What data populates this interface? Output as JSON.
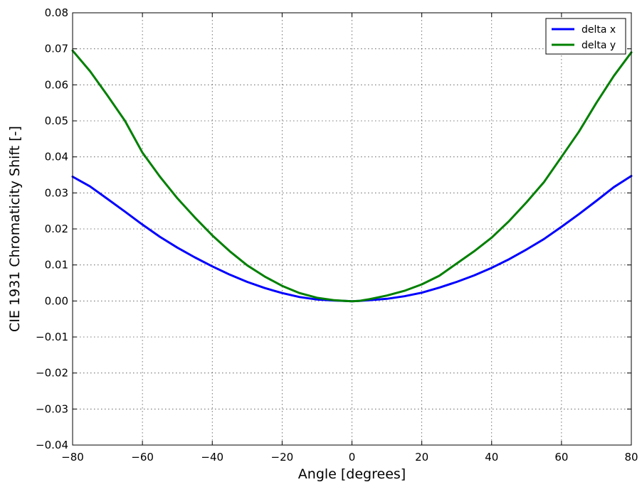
{
  "chart_data": {
    "type": "line",
    "xlabel": "Angle [degrees]",
    "ylabel": "CIE 1931 Chromaticity Shift  [-]",
    "xlim": [
      -80,
      80
    ],
    "ylim": [
      -0.04,
      0.08
    ],
    "xticks": [
      -80,
      -60,
      -40,
      -20,
      0,
      20,
      40,
      60,
      80
    ],
    "xtick_labels": [
      "−80",
      "−60",
      "−40",
      "−20",
      "0",
      "20",
      "40",
      "60",
      "80"
    ],
    "yticks": [
      -0.04,
      -0.03,
      -0.02,
      -0.01,
      0.0,
      0.01,
      0.02,
      0.03,
      0.04,
      0.05,
      0.06,
      0.07,
      0.08
    ],
    "ytick_labels": [
      "−0.04",
      "−0.03",
      "−0.02",
      "−0.01",
      "0.00",
      "0.01",
      "0.02",
      "0.03",
      "0.04",
      "0.05",
      "0.06",
      "0.07",
      "0.08"
    ],
    "grid": true,
    "legend": "top-right",
    "series": [
      {
        "name": "delta x",
        "color": "#0000ff",
        "x": [
          -80,
          -75,
          -70,
          -65,
          -60,
          -55,
          -50,
          -45,
          -40,
          -35,
          -30,
          -25,
          -20,
          -15,
          -10,
          -5,
          -2,
          0,
          2,
          5,
          10,
          15,
          20,
          25,
          30,
          35,
          40,
          45,
          50,
          55,
          60,
          65,
          70,
          75,
          80
        ],
        "y": [
          0.0345,
          0.0318,
          0.0283,
          0.0248,
          0.0212,
          0.0178,
          0.0148,
          0.0121,
          0.0096,
          0.0073,
          0.0053,
          0.0036,
          0.0022,
          0.0011,
          0.0004,
          0.0001,
          0.0,
          -0.0001,
          0.0,
          0.0002,
          0.0006,
          0.0013,
          0.0023,
          0.0037,
          0.0053,
          0.0071,
          0.0092,
          0.0116,
          0.0143,
          0.0172,
          0.0206,
          0.0241,
          0.0278,
          0.0316,
          0.0347
        ]
      },
      {
        "name": "delta y",
        "color": "#008000",
        "x": [
          -80,
          -75,
          -70,
          -65,
          -60,
          -55,
          -50,
          -45,
          -40,
          -35,
          -30,
          -25,
          -20,
          -15,
          -10,
          -5,
          -2,
          0,
          2,
          5,
          10,
          15,
          20,
          25,
          30,
          35,
          40,
          45,
          50,
          55,
          60,
          65,
          70,
          75,
          80
        ],
        "y": [
          0.0695,
          0.0638,
          0.057,
          0.05,
          0.0412,
          0.0345,
          0.0285,
          0.0232,
          0.0182,
          0.0138,
          0.0099,
          0.0068,
          0.0042,
          0.0022,
          0.0009,
          0.0002,
          0.0,
          -0.0001,
          0.0,
          0.0005,
          0.0015,
          0.0028,
          0.0046,
          0.007,
          0.0104,
          0.0138,
          0.0176,
          0.0222,
          0.0274,
          0.033,
          0.04,
          0.047,
          0.055,
          0.0625,
          0.069
        ]
      }
    ]
  }
}
